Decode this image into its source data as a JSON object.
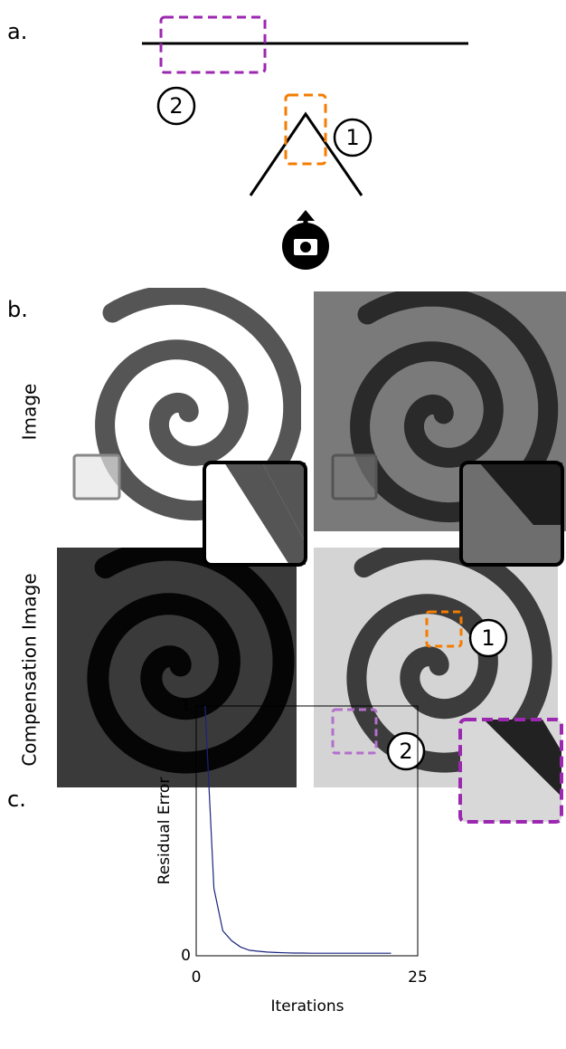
{
  "panel_a": {
    "label": "a.",
    "markers": [
      "1",
      "2"
    ]
  },
  "panel_b": {
    "label": "b.",
    "row_labels": [
      "Image",
      "Compensation Image"
    ],
    "markers": [
      "1",
      "2"
    ]
  },
  "panel_c": {
    "label": "c."
  },
  "chart_data": {
    "type": "line",
    "x_label": "Iterations",
    "y_label": "Residual Error",
    "x": [
      1,
      2,
      3,
      4,
      5,
      6,
      7,
      8,
      9,
      10,
      11,
      12,
      13,
      14,
      15,
      16,
      17,
      18,
      19,
      20,
      21,
      22
    ],
    "values": [
      1,
      0.27,
      0.1,
      0.06,
      0.035,
      0.022,
      0.018,
      0.015,
      0.013,
      0.012,
      0.011,
      0.011,
      0.01,
      0.01,
      0.01,
      0.01,
      0.01,
      0.01,
      0.01,
      0.01,
      0.01,
      0.01
    ],
    "color": "#1a237e",
    "xlim": [
      0,
      25
    ],
    "ylim": [
      0,
      1
    ],
    "xticks": [
      0,
      25
    ],
    "yticks": [
      0,
      1
    ]
  }
}
